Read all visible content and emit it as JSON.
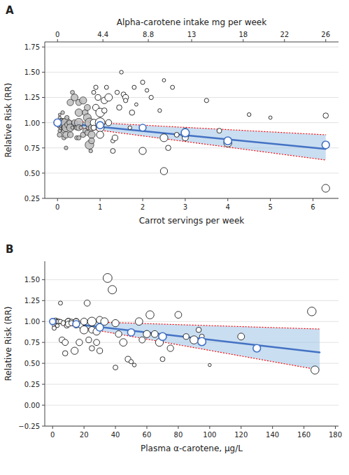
{
  "chart_data": [
    {
      "type": "scatter",
      "title": "A",
      "xlabel": "Carrot servings per week",
      "ylabel": "Relative Risk (RR)",
      "x2label": "Alpha-carotene intake mg per week",
      "xlim": [
        -0.3,
        6.6
      ],
      "ylim": [
        0.25,
        1.8
      ],
      "xticks": [
        0,
        1,
        2,
        3,
        4,
        5,
        6
      ],
      "yticks": [
        0.25,
        {
          "value": 0.5,
          "label": "0.50"
        },
        0.75,
        {
          "value": 1.0,
          "label": "1.00"
        },
        1.25,
        {
          "value": 1.5,
          "label": "1.50"
        },
        1.75
      ],
      "x2lim": [
        -1.2380952381,
        27.2380952381
      ],
      "x2ticks": [
        0,
        4.4,
        8.8,
        13,
        18,
        22,
        26
      ],
      "grid": true,
      "series": [
        {
          "type": "band",
          "x": [
            0,
            6.3
          ],
          "upper": [
            1.02,
            0.88
          ],
          "lower": [
            0.98,
            0.63
          ],
          "color": "#9DC3E6"
        },
        {
          "type": "line",
          "x": [
            0,
            6.3
          ],
          "values": [
            1.02,
            0.88
          ],
          "color": "#FF0000",
          "line_style": "dotted"
        },
        {
          "type": "line",
          "x": [
            0,
            6.3
          ],
          "values": [
            0.98,
            0.63
          ],
          "color": "#FF0000",
          "line_style": "dotted"
        },
        {
          "type": "line",
          "x": [
            0,
            6.3
          ],
          "values": [
            1.0,
            0.74
          ],
          "color": "#4472C4",
          "line_style": "solid"
        },
        {
          "type": "scatter",
          "marker": "filled-circle",
          "color": "#BEBEBE",
          "x": [
            0.05,
            0.05,
            0.05,
            0.05,
            0.05,
            0.05,
            0.05,
            0.08,
            0.1,
            0.1,
            0.1,
            0.12,
            0.12,
            0.15,
            0.15,
            0.15,
            0.15,
            0.18,
            0.2,
            0.2,
            0.2,
            0.2,
            0.22,
            0.25,
            0.28,
            0.3,
            0.3,
            0.3,
            0.35,
            0.35,
            0.4,
            0.4,
            0.45,
            0.45,
            0.5,
            0.5,
            0.5,
            0.5,
            0.5,
            0.55,
            0.6,
            0.6,
            0.65,
            0.65,
            0.7,
            0.7,
            0.7,
            0.72,
            0.75,
            0.75,
            0.78,
            0.8,
            0.8,
            0.8
          ],
          "values": [
            0.97,
            1.0,
            1.02,
            1.05,
            1.08,
            0.92,
            0.88,
            0.95,
            1.0,
            0.98,
            1.02,
            1.1,
            0.95,
            1.0,
            0.98,
            0.92,
            0.85,
            1.02,
            1.0,
            0.95,
            0.88,
            0.75,
            1.05,
            0.98,
            1.0,
            1.2,
            0.95,
            0.88,
            1.3,
            0.95,
            1.25,
            1.0,
            0.95,
            0.85,
            1.2,
            1.1,
            1.0,
            0.95,
            0.85,
            0.95,
            1.22,
            0.88,
            1.1,
            0.92,
            1.15,
            1.05,
            0.9,
            0.95,
            1.0,
            0.78,
            0.72,
            0.95,
            0.88,
            0.82
          ],
          "sizes": [
            30,
            20,
            15,
            10,
            8,
            12,
            25,
            18,
            80,
            35,
            20,
            15,
            10,
            60,
            40,
            25,
            18,
            12,
            100,
            70,
            45,
            15,
            20,
            50,
            30,
            45,
            60,
            35,
            18,
            12,
            50,
            35,
            25,
            18,
            40,
            60,
            80,
            35,
            20,
            15,
            55,
            30,
            35,
            25,
            40,
            65,
            30,
            20,
            90,
            80,
            15,
            45,
            55,
            35
          ]
        },
        {
          "type": "scatter",
          "marker": "open-circle",
          "color": "#000000",
          "x": [
            0.85,
            0.85,
            0.85,
            0.9,
            0.9,
            0.95,
            1.0,
            1.0,
            1.0,
            1.0,
            1.1,
            1.1,
            1.15,
            1.2,
            1.2,
            1.3,
            1.3,
            1.35,
            1.4,
            1.45,
            1.5,
            1.55,
            1.6,
            1.6,
            1.7,
            1.75,
            1.8,
            1.85,
            2.0,
            2.0,
            2.1,
            2.2,
            2.4,
            2.5,
            2.5,
            2.5,
            2.6,
            2.7,
            2.8,
            3.0,
            3.0,
            3.0,
            3.5,
            3.8,
            4.0,
            4.0,
            4.5,
            5.0,
            6.3,
            6.3
          ],
          "values": [
            1.3,
            1.0,
            0.95,
            1.35,
            1.15,
            1.25,
            1.1,
            1.0,
            0.95,
            0.88,
            1.22,
            1.12,
            1.35,
            1.25,
            1.0,
            0.72,
            0.82,
            0.85,
            1.3,
            1.15,
            1.5,
            1.28,
            1.25,
            1.22,
            0.95,
            1.1,
            1.35,
            1.18,
            1.4,
            0.72,
            1.32,
            1.25,
            1.12,
            0.85,
            1.42,
            0.52,
            0.75,
            1.35,
            0.88,
            0.88,
            0.85,
            0.92,
            1.22,
            0.92,
            0.8,
            0.82,
            1.08,
            1.05,
            0.35,
            1.07
          ],
          "sizes": [
            18,
            50,
            30,
            20,
            45,
            35,
            80,
            100,
            70,
            55,
            45,
            30,
            18,
            60,
            40,
            25,
            18,
            35,
            20,
            30,
            15,
            25,
            35,
            20,
            15,
            30,
            18,
            12,
            20,
            55,
            15,
            20,
            15,
            65,
            12,
            55,
            30,
            18,
            25,
            55,
            40,
            30,
            20,
            25,
            70,
            50,
            15,
            12,
            65,
            30
          ]
        },
        {
          "type": "scatter",
          "marker": "open-circle",
          "color": "#4472C4",
          "x": [
            0.0,
            1.0,
            2.0,
            3.0,
            4.0,
            6.3
          ],
          "values": [
            1.0,
            0.975,
            0.95,
            0.9,
            0.82,
            0.78
          ],
          "sizes": [
            60,
            55,
            50,
            70,
            65,
            60
          ]
        }
      ]
    },
    {
      "type": "scatter",
      "title": "B",
      "xlabel": "Plasma α-carotene, μg/L",
      "ylabel": "Relative Risk (RR)",
      "xlim": [
        -5,
        182
      ],
      "ylim": [
        -0.25,
        1.72
      ],
      "xticks": [
        0,
        20,
        40,
        60,
        80,
        100,
        120,
        140,
        160,
        180
      ],
      "yticks": [
        {
          "value": -0.25,
          "label": "−0.25"
        },
        {
          "value": 0.0,
          "label": "0.00"
        },
        0.25,
        {
          "value": 0.5,
          "label": "0.50"
        },
        0.75,
        {
          "value": 1.0,
          "label": "1.00"
        },
        1.25,
        {
          "value": 1.5,
          "label": "1.50"
        }
      ],
      "grid": true,
      "series": [
        {
          "type": "band",
          "x": [
            0,
            170
          ],
          "upper": [
            1.01,
            0.91
          ],
          "lower": [
            0.99,
            0.42
          ],
          "color": "#9DC3E6"
        },
        {
          "type": "line",
          "x": [
            0,
            170
          ],
          "values": [
            1.01,
            0.91
          ],
          "color": "#FF0000",
          "line_style": "dotted"
        },
        {
          "type": "line",
          "x": [
            0,
            170
          ],
          "values": [
            0.99,
            0.42
          ],
          "color": "#FF0000",
          "line_style": "dotted"
        },
        {
          "type": "line",
          "x": [
            0,
            170
          ],
          "values": [
            1.0,
            0.63
          ],
          "color": "#4472C4",
          "line_style": "solid"
        },
        {
          "type": "scatter",
          "marker": "open-circle",
          "color": "#000000",
          "x": [
            1,
            1,
            1,
            1,
            1,
            1,
            1,
            1,
            2,
            2,
            2,
            3,
            3,
            3,
            4,
            5,
            5,
            6,
            7,
            8,
            8,
            9,
            10,
            10,
            10,
            12,
            12,
            14,
            15,
            15,
            15,
            17,
            18,
            20,
            20,
            22,
            23,
            25,
            25,
            25,
            28,
            28,
            30,
            30,
            33,
            35,
            38,
            40,
            40,
            42,
            45,
            48,
            50,
            52,
            55,
            57,
            60,
            62,
            65,
            68,
            70,
            75,
            80,
            85,
            90,
            93,
            95,
            100,
            120,
            165,
            167
          ],
          "values": [
            1.0,
            1.0,
            0.98,
            1.02,
            1.0,
            0.98,
            0.95,
            0.92,
            1.0,
            0.98,
            1.02,
            1.0,
            1.0,
            0.95,
            1.0,
            1.22,
            1.0,
            0.78,
            0.98,
            0.75,
            0.62,
            0.95,
            1.0,
            1.0,
            0.97,
            1.0,
            0.98,
            0.65,
            1.0,
            1.0,
            0.95,
            0.75,
            0.95,
            1.0,
            0.9,
            1.22,
            0.78,
            1.0,
            0.9,
            0.68,
            0.88,
            0.75,
            0.65,
            1.02,
            1.0,
            1.52,
            1.38,
            0.98,
            0.45,
            0.85,
            0.75,
            0.55,
            0.52,
            0.48,
            1.0,
            0.78,
            0.85,
            1.08,
            0.85,
            0.75,
            0.55,
            0.68,
            1.08,
            0.82,
            0.78,
            0.9,
            0.82,
            0.48,
            0.82,
            1.12,
            0.42
          ],
          "sizes": [
            8,
            8,
            8,
            8,
            10,
            12,
            15,
            18,
            20,
            25,
            15,
            30,
            20,
            15,
            25,
            18,
            20,
            35,
            30,
            40,
            30,
            25,
            45,
            40,
            35,
            25,
            30,
            55,
            40,
            35,
            25,
            45,
            30,
            50,
            70,
            40,
            35,
            80,
            45,
            30,
            55,
            40,
            35,
            50,
            60,
            85,
            75,
            55,
            25,
            45,
            60,
            35,
            20,
            15,
            60,
            40,
            55,
            70,
            50,
            65,
            25,
            45,
            50,
            35,
            70,
            30,
            25,
            10,
            50,
            80,
            70
          ]
        },
        {
          "type": "scatter",
          "marker": "open-circle",
          "color": "#4472C4",
          "x": [
            0,
            15,
            30,
            50,
            70,
            95,
            130
          ],
          "values": [
            1.0,
            0.97,
            0.93,
            0.87,
            0.82,
            0.76,
            0.68
          ],
          "sizes": [
            40,
            50,
            60,
            55,
            65,
            70,
            60
          ]
        }
      ]
    }
  ]
}
